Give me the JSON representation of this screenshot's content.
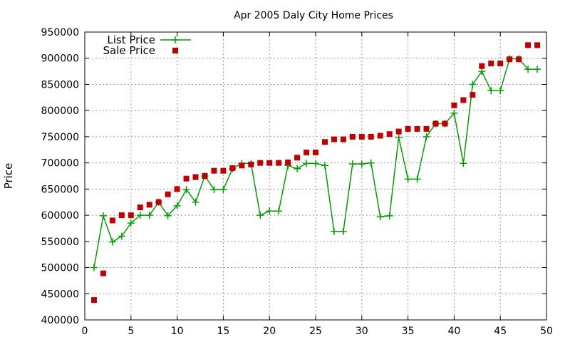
{
  "chart_data": {
    "type": "line",
    "title": "Apr 2005 Daly City Home Prices",
    "xlabel": "",
    "ylabel": "Price",
    "xlim": [
      0,
      50
    ],
    "ylim": [
      400000,
      950000
    ],
    "xticks": [
      "0",
      "5",
      "10",
      "15",
      "20",
      "25",
      "30",
      "35",
      "40",
      "45",
      "50"
    ],
    "yticks": [
      "400000",
      "450000",
      "500000",
      "550000",
      "600000",
      "650000",
      "700000",
      "750000",
      "800000",
      "850000",
      "900000",
      "950000"
    ],
    "grid": true,
    "legend_position": "top-left",
    "x": [
      1,
      2,
      3,
      4,
      5,
      6,
      7,
      8,
      9,
      10,
      11,
      12,
      13,
      14,
      15,
      16,
      17,
      18,
      19,
      20,
      21,
      22,
      23,
      24,
      25,
      26,
      27,
      28,
      29,
      30,
      31,
      32,
      33,
      34,
      35,
      36,
      37,
      38,
      39,
      40,
      41,
      42,
      43,
      44,
      45,
      46,
      47,
      48,
      49
    ],
    "series": [
      {
        "name": "List Price",
        "style": "line+cross",
        "color": "#00a000",
        "values": [
          500000,
          599000,
          549000,
          560000,
          585000,
          600000,
          600000,
          625000,
          599000,
          618000,
          649000,
          625000,
          675000,
          649000,
          649000,
          689000,
          699000,
          699000,
          600000,
          608000,
          608000,
          695000,
          689000,
          699000,
          699000,
          695000,
          569000,
          569000,
          698000,
          698000,
          700000,
          597000,
          599000,
          749000,
          669000,
          669000,
          750000,
          775000,
          775000,
          795000,
          699000,
          850000,
          875000,
          838000,
          838000,
          899000,
          899000,
          879000,
          879000
        ]
      },
      {
        "name": "Sale Price",
        "style": "square",
        "color": "#c00000",
        "values": [
          438000,
          489000,
          590000,
          600000,
          600000,
          615000,
          620000,
          625000,
          640000,
          650000,
          670000,
          673000,
          675000,
          685000,
          685000,
          690000,
          695000,
          697000,
          700000,
          700000,
          700000,
          701000,
          710000,
          720000,
          720000,
          740000,
          745000,
          745000,
          750000,
          750000,
          750000,
          752000,
          755000,
          760000,
          765000,
          765000,
          765000,
          775000,
          775000,
          810000,
          820000,
          830000,
          885000,
          890000,
          890000,
          898000,
          898000,
          925000,
          925000
        ]
      }
    ]
  }
}
